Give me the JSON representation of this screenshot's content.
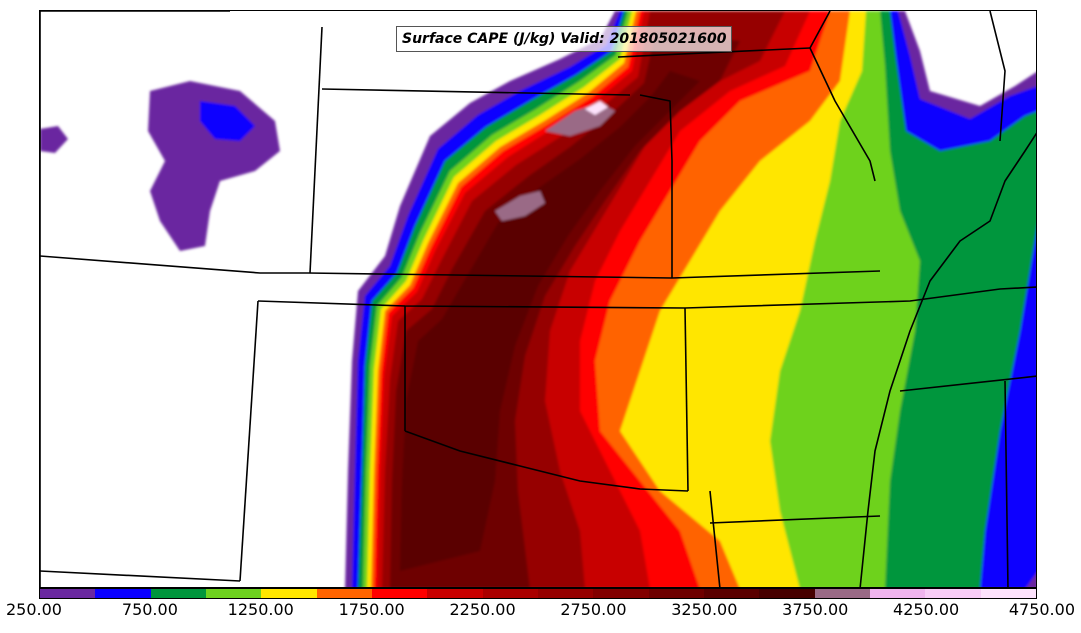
{
  "title": "Surface CAPE (J/kg) Valid: 201805021600",
  "colorbar": {
    "min": 250,
    "max": 4750,
    "step": 250,
    "colors": [
      "#6a28a0",
      "#0a00ff",
      "#00963c",
      "#6ed21e",
      "#ffe600",
      "#ff6400",
      "#ff0000",
      "#c80000",
      "#aa0000",
      "#960000",
      "#820000",
      "#6e0000",
      "#5a0000",
      "#460000",
      "#9a6a86",
      "#f0b4ee",
      "#f8ccf6",
      "#fde2fc"
    ],
    "tick_labels": [
      "250.00",
      "750.00",
      "1250.00",
      "1750.00",
      "2250.00",
      "2750.00",
      "3250.00",
      "3750.00",
      "4250.00",
      "4750.00"
    ]
  }
}
